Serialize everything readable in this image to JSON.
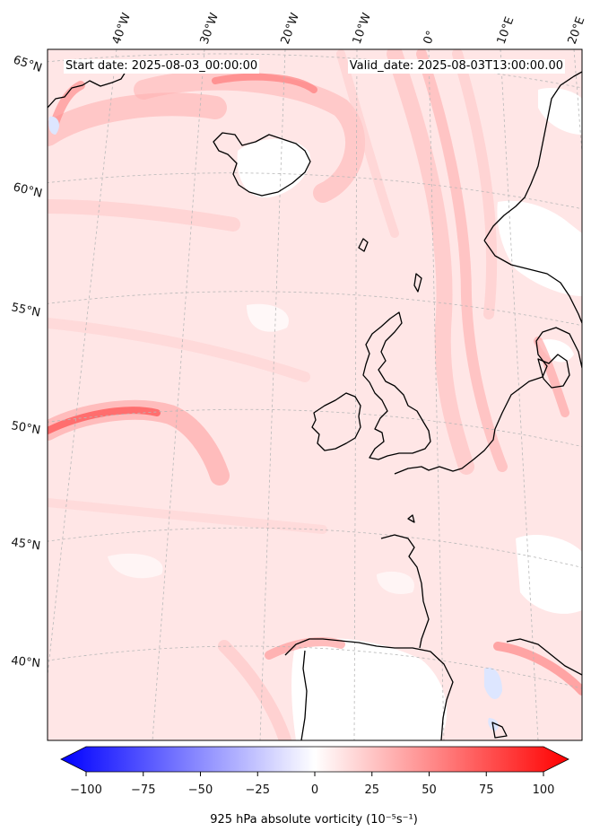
{
  "header": {
    "start_label": "Start date: 2025-08-03_00:00:00",
    "valid_label": "Valid_date: 2025-08-03T13:00:00.00"
  },
  "longitude_labels": [
    "40°W",
    "30°W",
    "20°W",
    "10°W",
    "0°",
    "10°E",
    "20°E"
  ],
  "latitude_labels": [
    "65°N",
    "60°N",
    "55°N",
    "50°N",
    "45°N",
    "40°N"
  ],
  "colorbar": {
    "title": "925 hPa absolute vorticity (10⁻⁵s⁻¹)",
    "ticks": [
      "−100",
      "−75",
      "−50",
      "−25",
      "0",
      "25",
      "50",
      "75",
      "100"
    ],
    "min": -100,
    "max": 100,
    "colors": {
      "negative": "#0000ff",
      "zero": "#ffffff",
      "positive": "#ff0000"
    }
  },
  "colors": {
    "background_field": "#ffe3e3",
    "coastline": "#000000",
    "gridline": "#b8b8b8"
  }
}
